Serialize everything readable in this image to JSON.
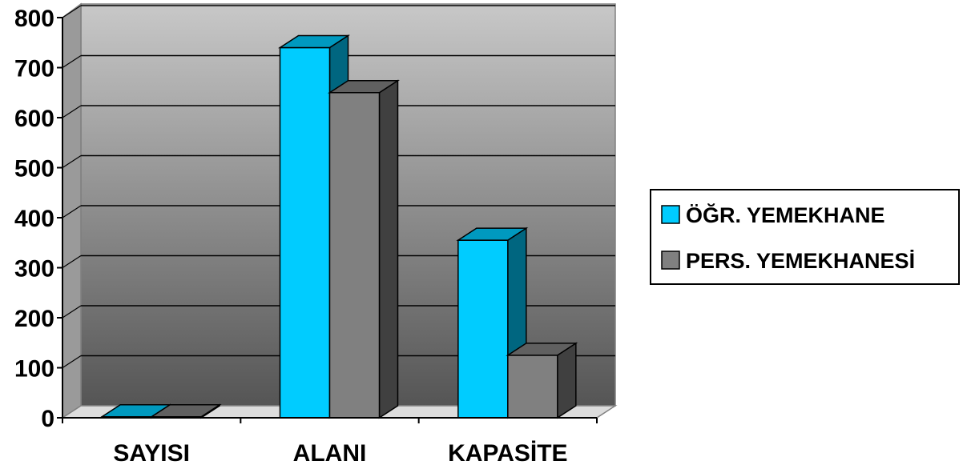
{
  "chart_data": {
    "type": "bar",
    "style": "3d-clustered-column",
    "categories": [
      "SAYISI",
      "ALANI",
      "KAPASİTE"
    ],
    "series": [
      {
        "name": "ÖĞR. YEMEKHANE",
        "values": [
          2,
          740,
          355
        ],
        "color": "#00CCFF",
        "side_color": "#006680",
        "top_color": "#0099BF"
      },
      {
        "name": "PERS. YEMEKHANESİ",
        "values": [
          2,
          650,
          125
        ],
        "color": "#808080",
        "side_color": "#404040",
        "top_color": "#606060"
      }
    ],
    "yticks": [
      "0",
      "100",
      "200",
      "300",
      "400",
      "500",
      "600",
      "700",
      "800"
    ],
    "ylim": [
      0,
      800
    ],
    "grid": true,
    "legend_position": "right",
    "wall_gradient": [
      "#C8C8C8",
      "#555555"
    ]
  }
}
